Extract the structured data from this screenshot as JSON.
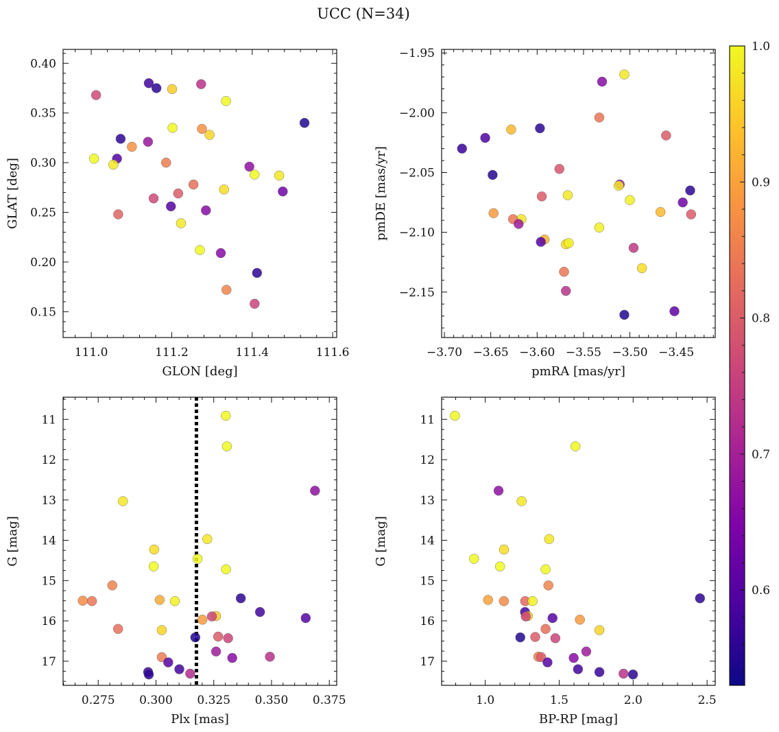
{
  "figure": {
    "title": "UCC (N=34)"
  },
  "colorbar": {
    "min": 0.53,
    "max": 1.0,
    "ticks": [
      0.6,
      0.7,
      0.8,
      0.9,
      1.0
    ],
    "tick_labels": [
      "0.6",
      "0.7",
      "0.8",
      "0.9",
      "1.0"
    ],
    "colormap": "plasma"
  },
  "chart_data": [
    {
      "type": "scatter",
      "name": "galactic",
      "xlabel": "GLON [deg]",
      "ylabel": "GLAT [deg]",
      "xlim": [
        110.93,
        111.61
      ],
      "ylim": [
        0.124,
        0.414
      ],
      "y_inverted": false,
      "xticks": [
        111.0,
        111.2,
        111.4,
        111.6
      ],
      "xtick_labels": [
        "111.0",
        "111.2",
        "111.4",
        "111.6"
      ],
      "yticks": [
        0.15,
        0.2,
        0.25,
        0.3,
        0.35,
        0.4
      ],
      "ytick_labels": [
        "0.15",
        "0.20",
        "0.25",
        "0.30",
        "0.35",
        "0.40"
      ],
      "points": [
        {
          "x": 111.012,
          "y": 0.368,
          "c": 0.77
        },
        {
          "x": 111.143,
          "y": 0.38,
          "c": 0.58
        },
        {
          "x": 111.162,
          "y": 0.375,
          "c": 0.56
        },
        {
          "x": 111.201,
          "y": 0.374,
          "c": 0.95
        },
        {
          "x": 111.273,
          "y": 0.379,
          "c": 0.73
        },
        {
          "x": 111.335,
          "y": 0.362,
          "c": 1.0
        },
        {
          "x": 111.53,
          "y": 0.34,
          "c": 0.55
        },
        {
          "x": 111.202,
          "y": 0.335,
          "c": 1.0
        },
        {
          "x": 111.275,
          "y": 0.334,
          "c": 0.88
        },
        {
          "x": 111.294,
          "y": 0.328,
          "c": 0.96
        },
        {
          "x": 111.073,
          "y": 0.324,
          "c": 0.56
        },
        {
          "x": 111.101,
          "y": 0.316,
          "c": 0.88
        },
        {
          "x": 111.141,
          "y": 0.321,
          "c": 0.68
        },
        {
          "x": 111.007,
          "y": 0.304,
          "c": 1.0
        },
        {
          "x": 111.064,
          "y": 0.304,
          "c": 0.6
        },
        {
          "x": 111.055,
          "y": 0.298,
          "c": 0.98
        },
        {
          "x": 111.186,
          "y": 0.3,
          "c": 0.85
        },
        {
          "x": 111.393,
          "y": 0.296,
          "c": 0.67
        },
        {
          "x": 111.406,
          "y": 0.288,
          "c": 1.0
        },
        {
          "x": 111.467,
          "y": 0.287,
          "c": 0.98
        },
        {
          "x": 111.476,
          "y": 0.271,
          "c": 0.63
        },
        {
          "x": 111.254,
          "y": 0.278,
          "c": 0.83
        },
        {
          "x": 111.33,
          "y": 0.273,
          "c": 0.97
        },
        {
          "x": 111.216,
          "y": 0.269,
          "c": 0.8
        },
        {
          "x": 111.155,
          "y": 0.264,
          "c": 0.77
        },
        {
          "x": 111.198,
          "y": 0.256,
          "c": 0.6
        },
        {
          "x": 111.285,
          "y": 0.252,
          "c": 0.66
        },
        {
          "x": 111.067,
          "y": 0.248,
          "c": 0.81
        },
        {
          "x": 111.223,
          "y": 0.239,
          "c": 0.98
        },
        {
          "x": 111.27,
          "y": 0.212,
          "c": 1.0
        },
        {
          "x": 111.322,
          "y": 0.209,
          "c": 0.66
        },
        {
          "x": 111.412,
          "y": 0.189,
          "c": 0.56
        },
        {
          "x": 111.336,
          "y": 0.172,
          "c": 0.86
        },
        {
          "x": 111.406,
          "y": 0.158,
          "c": 0.76
        }
      ]
    },
    {
      "type": "scatter",
      "name": "proper-motion",
      "xlabel": "pmRA [mas/yr]",
      "ylabel": "pmDE [mas/yr]",
      "xlim": [
        -3.703,
        -3.408
      ],
      "ylim": [
        -2.188,
        -1.947
      ],
      "y_inverted": false,
      "xticks": [
        -3.7,
        -3.65,
        -3.6,
        -3.55,
        -3.5,
        -3.45
      ],
      "xtick_labels": [
        "−3.70",
        "−3.65",
        "−3.60",
        "−3.55",
        "−3.50",
        "−3.45"
      ],
      "yticks": [
        -1.95,
        -2.0,
        -2.05,
        -2.1,
        -2.15
      ],
      "ytick_labels": [
        "−1.95",
        "−2.00",
        "−2.05",
        "−2.10",
        "−2.15"
      ],
      "points": [
        {
          "x": -3.506,
          "y": -1.968,
          "c": 0.98
        },
        {
          "x": -3.53,
          "y": -1.974,
          "c": 0.66
        },
        {
          "x": -3.533,
          "y": -2.004,
          "c": 0.84
        },
        {
          "x": -3.597,
          "y": -2.013,
          "c": 0.56
        },
        {
          "x": -3.628,
          "y": -2.014,
          "c": 0.93
        },
        {
          "x": -3.461,
          "y": -2.019,
          "c": 0.8
        },
        {
          "x": -3.656,
          "y": -2.021,
          "c": 0.59
        },
        {
          "x": -3.681,
          "y": -2.03,
          "c": 0.57
        },
        {
          "x": -3.576,
          "y": -2.047,
          "c": 0.79
        },
        {
          "x": -3.648,
          "y": -2.052,
          "c": 0.55
        },
        {
          "x": -3.511,
          "y": -2.06,
          "c": 0.68
        },
        {
          "x": -3.512,
          "y": -2.061,
          "c": 0.98
        },
        {
          "x": -3.435,
          "y": -2.065,
          "c": 0.56
        },
        {
          "x": -3.567,
          "y": -2.069,
          "c": 0.98
        },
        {
          "x": -3.595,
          "y": -2.07,
          "c": 0.8
        },
        {
          "x": -3.5,
          "y": -2.073,
          "c": 0.99
        },
        {
          "x": -3.443,
          "y": -2.075,
          "c": 0.63
        },
        {
          "x": -3.467,
          "y": -2.083,
          "c": 0.93
        },
        {
          "x": -3.647,
          "y": -2.084,
          "c": 0.89
        },
        {
          "x": -3.434,
          "y": -2.085,
          "c": 0.8
        },
        {
          "x": -3.617,
          "y": -2.089,
          "c": 0.98
        },
        {
          "x": -3.626,
          "y": -2.089,
          "c": 0.84
        },
        {
          "x": -3.62,
          "y": -2.093,
          "c": 0.69
        },
        {
          "x": -3.533,
          "y": -2.096,
          "c": 0.99
        },
        {
          "x": -3.592,
          "y": -2.106,
          "c": 0.92
        },
        {
          "x": -3.596,
          "y": -2.108,
          "c": 0.6
        },
        {
          "x": -3.569,
          "y": -2.11,
          "c": 0.97
        },
        {
          "x": -3.566,
          "y": -2.109,
          "c": 0.99
        },
        {
          "x": -3.496,
          "y": -2.113,
          "c": 0.74
        },
        {
          "x": -3.487,
          "y": -2.13,
          "c": 0.97
        },
        {
          "x": -3.571,
          "y": -2.133,
          "c": 0.84
        },
        {
          "x": -3.569,
          "y": -2.149,
          "c": 0.73
        },
        {
          "x": -3.452,
          "y": -2.166,
          "c": 0.61
        },
        {
          "x": -3.506,
          "y": -2.169,
          "c": 0.55
        }
      ]
    },
    {
      "type": "scatter",
      "name": "parallax-magnitude",
      "xlabel": "Plx [mas]",
      "ylabel": "G [mag]",
      "xlim": [
        0.2598,
        0.3782
      ],
      "ylim": [
        10.45,
        17.6
      ],
      "y_inverted": true,
      "xticks": [
        0.275,
        0.3,
        0.325,
        0.35,
        0.375
      ],
      "xtick_labels": [
        "0.275",
        "0.300",
        "0.325",
        "0.350",
        "0.375"
      ],
      "yticks": [
        11,
        12,
        13,
        14,
        15,
        16,
        17
      ],
      "ytick_labels": [
        "11",
        "12",
        "13",
        "14",
        "15",
        "16",
        "17"
      ],
      "vline": {
        "x": 0.3175,
        "style": "dotted"
      },
      "points": [
        {
          "x": 0.3302,
          "y": 10.91,
          "c": 1.0
        },
        {
          "x": 0.3307,
          "y": 11.67,
          "c": 1.0
        },
        {
          "x": 0.3688,
          "y": 12.77,
          "c": 0.67
        },
        {
          "x": 0.2857,
          "y": 13.03,
          "c": 0.98
        },
        {
          "x": 0.3222,
          "y": 13.97,
          "c": 0.98
        },
        {
          "x": 0.2992,
          "y": 14.23,
          "c": 0.97
        },
        {
          "x": 0.318,
          "y": 14.46,
          "c": 1.0
        },
        {
          "x": 0.299,
          "y": 14.65,
          "c": 1.0
        },
        {
          "x": 0.3303,
          "y": 14.72,
          "c": 1.0
        },
        {
          "x": 0.2811,
          "y": 15.12,
          "c": 0.86
        },
        {
          "x": 0.3367,
          "y": 15.44,
          "c": 0.56
        },
        {
          "x": 0.2683,
          "y": 15.5,
          "c": 0.87
        },
        {
          "x": 0.2723,
          "y": 15.51,
          "c": 0.84
        },
        {
          "x": 0.3016,
          "y": 15.48,
          "c": 0.91
        },
        {
          "x": 0.3082,
          "y": 15.51,
          "c": 0.99
        },
        {
          "x": 0.345,
          "y": 15.78,
          "c": 0.58
        },
        {
          "x": 0.326,
          "y": 15.88,
          "c": 0.95
        },
        {
          "x": 0.3242,
          "y": 15.89,
          "c": 0.76
        },
        {
          "x": 0.3201,
          "y": 15.97,
          "c": 0.89
        },
        {
          "x": 0.3648,
          "y": 15.93,
          "c": 0.6
        },
        {
          "x": 0.2836,
          "y": 16.2,
          "c": 0.83
        },
        {
          "x": 0.3025,
          "y": 16.23,
          "c": 0.96
        },
        {
          "x": 0.3269,
          "y": 16.39,
          "c": 0.8
        },
        {
          "x": 0.3312,
          "y": 16.43,
          "c": 0.76
        },
        {
          "x": 0.317,
          "y": 16.41,
          "c": 0.55
        },
        {
          "x": 0.326,
          "y": 16.76,
          "c": 0.69
        },
        {
          "x": 0.3025,
          "y": 16.9,
          "c": 0.85
        },
        {
          "x": 0.333,
          "y": 16.92,
          "c": 0.66
        },
        {
          "x": 0.3493,
          "y": 16.89,
          "c": 0.73
        },
        {
          "x": 0.3053,
          "y": 17.03,
          "c": 0.6
        },
        {
          "x": 0.3101,
          "y": 17.2,
          "c": 0.58
        },
        {
          "x": 0.2966,
          "y": 17.27,
          "c": 0.57
        },
        {
          "x": 0.2969,
          "y": 17.33,
          "c": 0.56
        },
        {
          "x": 0.3148,
          "y": 17.31,
          "c": 0.72
        }
      ]
    },
    {
      "type": "scatter",
      "name": "color-magnitude",
      "xlabel": "BP-RP [mag]",
      "ylabel": "G [mag]",
      "xlim": [
        0.705,
        2.555
      ],
      "ylim": [
        10.45,
        17.6
      ],
      "y_inverted": true,
      "xticks": [
        1.0,
        1.5,
        2.0,
        2.5
      ],
      "xtick_labels": [
        "1.0",
        "1.5",
        "2.0",
        "2.5"
      ],
      "yticks": [
        11,
        12,
        13,
        14,
        15,
        16,
        17
      ],
      "ytick_labels": [
        "11",
        "12",
        "13",
        "14",
        "15",
        "16",
        "17"
      ],
      "points": [
        {
          "x": 0.795,
          "y": 10.91,
          "c": 1.0
        },
        {
          "x": 1.61,
          "y": 11.67,
          "c": 1.0
        },
        {
          "x": 1.09,
          "y": 12.77,
          "c": 0.67
        },
        {
          "x": 1.246,
          "y": 13.03,
          "c": 0.98
        },
        {
          "x": 1.432,
          "y": 13.97,
          "c": 0.98
        },
        {
          "x": 1.127,
          "y": 14.23,
          "c": 0.97
        },
        {
          "x": 0.924,
          "y": 14.46,
          "c": 1.0
        },
        {
          "x": 1.1,
          "y": 14.65,
          "c": 1.0
        },
        {
          "x": 1.408,
          "y": 14.72,
          "c": 1.0
        },
        {
          "x": 1.427,
          "y": 15.12,
          "c": 0.86
        },
        {
          "x": 2.452,
          "y": 15.44,
          "c": 0.56
        },
        {
          "x": 1.019,
          "y": 15.48,
          "c": 0.9
        },
        {
          "x": 1.126,
          "y": 15.51,
          "c": 0.87
        },
        {
          "x": 1.27,
          "y": 15.51,
          "c": 0.82
        },
        {
          "x": 1.32,
          "y": 15.51,
          "c": 0.99
        },
        {
          "x": 1.269,
          "y": 15.78,
          "c": 0.58
        },
        {
          "x": 1.288,
          "y": 15.88,
          "c": 0.95
        },
        {
          "x": 1.274,
          "y": 15.89,
          "c": 0.76
        },
        {
          "x": 1.455,
          "y": 15.93,
          "c": 0.6
        },
        {
          "x": 1.64,
          "y": 15.97,
          "c": 0.89
        },
        {
          "x": 1.408,
          "y": 16.2,
          "c": 0.83
        },
        {
          "x": 1.772,
          "y": 16.23,
          "c": 0.96
        },
        {
          "x": 1.237,
          "y": 16.41,
          "c": 0.55
        },
        {
          "x": 1.338,
          "y": 16.4,
          "c": 0.8
        },
        {
          "x": 1.474,
          "y": 16.43,
          "c": 0.76
        },
        {
          "x": 1.683,
          "y": 16.76,
          "c": 0.69
        },
        {
          "x": 1.359,
          "y": 16.89,
          "c": 0.85
        },
        {
          "x": 1.378,
          "y": 16.9,
          "c": 0.8
        },
        {
          "x": 1.598,
          "y": 16.92,
          "c": 0.66
        },
        {
          "x": 1.421,
          "y": 17.03,
          "c": 0.6
        },
        {
          "x": 1.627,
          "y": 17.2,
          "c": 0.58
        },
        {
          "x": 1.772,
          "y": 17.27,
          "c": 0.57
        },
        {
          "x": 1.935,
          "y": 17.31,
          "c": 0.73
        },
        {
          "x": 1.999,
          "y": 17.33,
          "c": 0.56
        }
      ]
    }
  ]
}
